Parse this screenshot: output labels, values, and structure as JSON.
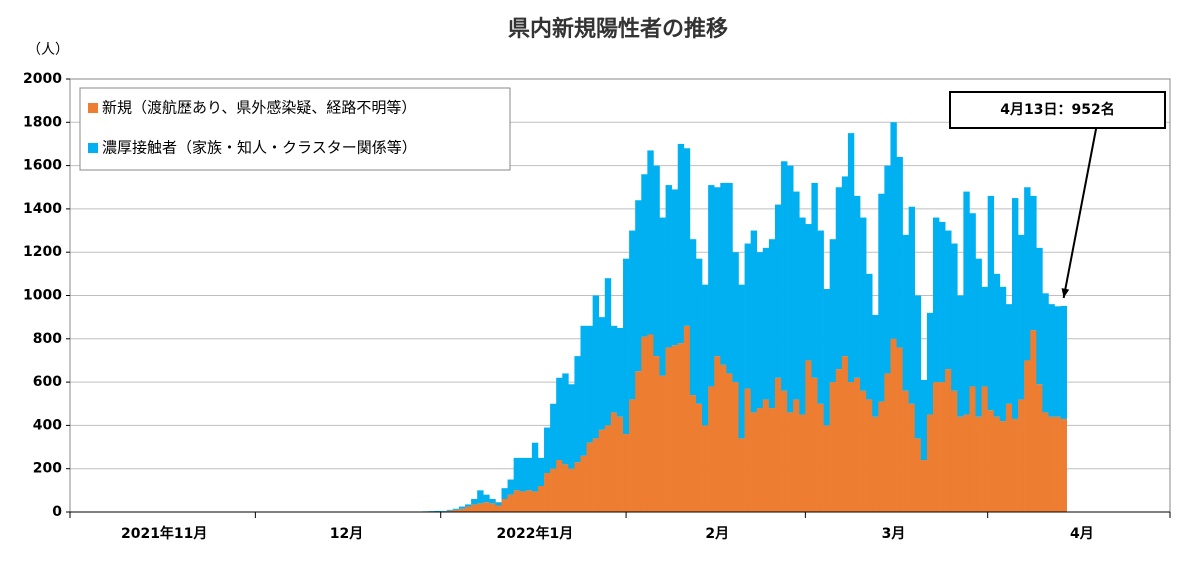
{
  "chart_data": {
    "type": "stacked_bar",
    "title": "県内新規陽性者の推移",
    "ylabel": "（人）",
    "annotation": "4月13日：952名",
    "ylim": [
      0,
      2000
    ],
    "yticks": [
      0,
      200,
      400,
      600,
      800,
      1000,
      1200,
      1400,
      1600,
      1800,
      2000
    ],
    "grid": true,
    "legend": "upper left",
    "categories": [
      null,
      null,
      null,
      null,
      null,
      null,
      null,
      null,
      null,
      null,
      null,
      null,
      null,
      null,
      null,
      "2021年11月",
      null,
      null,
      null,
      null,
      null,
      null,
      null,
      null,
      null,
      null,
      null,
      null,
      null,
      null,
      null,
      null,
      null,
      null,
      null,
      null,
      null,
      null,
      null,
      null,
      null,
      null,
      null,
      null,
      null,
      "12月",
      null,
      null,
      null,
      null,
      null,
      null,
      null,
      null,
      null,
      null,
      null,
      null,
      null,
      null,
      null,
      null,
      null,
      null,
      null,
      null,
      null,
      null,
      null,
      null,
      null,
      null,
      null,
      null,
      null,
      null,
      "2022年1月",
      null,
      null,
      null,
      null,
      null,
      null,
      null,
      null,
      null,
      null,
      null,
      null,
      null,
      null,
      null,
      null,
      null,
      null,
      null,
      null,
      null,
      null,
      null,
      null,
      null,
      null,
      null,
      null,
      null,
      "2月",
      null,
      null,
      null,
      null,
      null,
      null,
      null,
      null,
      null,
      null,
      null,
      null,
      null,
      null,
      null,
      null,
      null,
      null,
      null,
      null,
      null,
      null,
      null,
      null,
      null,
      null,
      null,
      null,
      "3月",
      null,
      null,
      null,
      null,
      null,
      null,
      null,
      null,
      null,
      null,
      null,
      null,
      null,
      null,
      null,
      null,
      null,
      null,
      null,
      null,
      null,
      null,
      null,
      null,
      null,
      null,
      null,
      null,
      null,
      null,
      "4月",
      null,
      null,
      null,
      null,
      null,
      null,
      null,
      null,
      null,
      null,
      null,
      null,
      null,
      null
    ],
    "series": [
      {
        "name": "新規（渡航歴あり、県外感染疑、経路不明等）",
        "color": "#ED7D31",
        "values": [
          0,
          0,
          0,
          0,
          0,
          0,
          0,
          0,
          0,
          0,
          0,
          0,
          0,
          0,
          0,
          0,
          0,
          0,
          0,
          0,
          0,
          0,
          0,
          0,
          0,
          0,
          0,
          0,
          0,
          0,
          0,
          0,
          0,
          0,
          0,
          0,
          0,
          0,
          0,
          0,
          0,
          0,
          0,
          0,
          0,
          0,
          0,
          0,
          0,
          0,
          0,
          0,
          0,
          0,
          0,
          0,
          0,
          1,
          1,
          2,
          2,
          3,
          6,
          10,
          15,
          25,
          35,
          40,
          45,
          40,
          30,
          60,
          80,
          100,
          95,
          100,
          95,
          120,
          180,
          200,
          240,
          220,
          200,
          230,
          260,
          320,
          340,
          380,
          400,
          460,
          440,
          360,
          520,
          650,
          810,
          820,
          720,
          630,
          760,
          770,
          780,
          860,
          540,
          500,
          400,
          580,
          720,
          680,
          640,
          600,
          340,
          570,
          460,
          480,
          520,
          480,
          620,
          560,
          460,
          520,
          450,
          700,
          620,
          500,
          400,
          600,
          660,
          720,
          600,
          620,
          560,
          520,
          440,
          510,
          640,
          800,
          760,
          560,
          500,
          340,
          240,
          450,
          600,
          600,
          660,
          560,
          440,
          450,
          580,
          440,
          580,
          470,
          440,
          420,
          500,
          430,
          520,
          700,
          840,
          590,
          460,
          440,
          440,
          430,
          null,
          null,
          null,
          null,
          null,
          null,
          null,
          null,
          null,
          null,
          null,
          null,
          null,
          null,
          null,
          null,
          null
        ]
      },
      {
        "name": "濃厚接触者（家族・知人・クラスター関係等）",
        "color": "#00B0F0",
        "values": [
          0,
          0,
          0,
          0,
          0,
          0,
          0,
          0,
          0,
          0,
          0,
          0,
          0,
          0,
          0,
          0,
          0,
          0,
          0,
          0,
          0,
          0,
          0,
          0,
          0,
          0,
          0,
          0,
          0,
          0,
          0,
          0,
          0,
          0,
          0,
          0,
          0,
          0,
          0,
          0,
          0,
          0,
          0,
          0,
          0,
          0,
          0,
          0,
          0,
          0,
          0,
          0,
          0,
          0,
          0,
          0,
          0,
          1,
          2,
          2,
          3,
          2,
          4,
          5,
          10,
          10,
          25,
          60,
          35,
          20,
          15,
          50,
          70,
          150,
          155,
          150,
          225,
          130,
          210,
          300,
          380,
          420,
          390,
          490,
          600,
          540,
          660,
          520,
          680,
          400,
          410,
          810,
          780,
          790,
          750,
          850,
          880,
          730,
          750,
          720,
          920,
          820,
          720,
          670,
          650,
          930,
          780,
          840,
          880,
          600,
          710,
          670,
          840,
          720,
          700,
          780,
          800,
          1060,
          1140,
          960,
          910,
          630,
          900,
          800,
          630,
          660,
          840,
          830,
          1150,
          840,
          800,
          580,
          470,
          960,
          960,
          1000,
          880,
          720,
          910,
          660,
          370,
          470,
          760,
          740,
          640,
          680,
          560,
          1030,
          800,
          730,
          460,
          990,
          660,
          620,
          460,
          1020,
          760,
          800,
          620,
          630,
          550,
          520,
          510,
          522,
          null,
          null,
          null,
          null,
          null,
          null,
          null,
          null,
          null,
          null,
          null,
          null,
          null,
          null,
          null,
          null,
          null
        ]
      }
    ]
  }
}
